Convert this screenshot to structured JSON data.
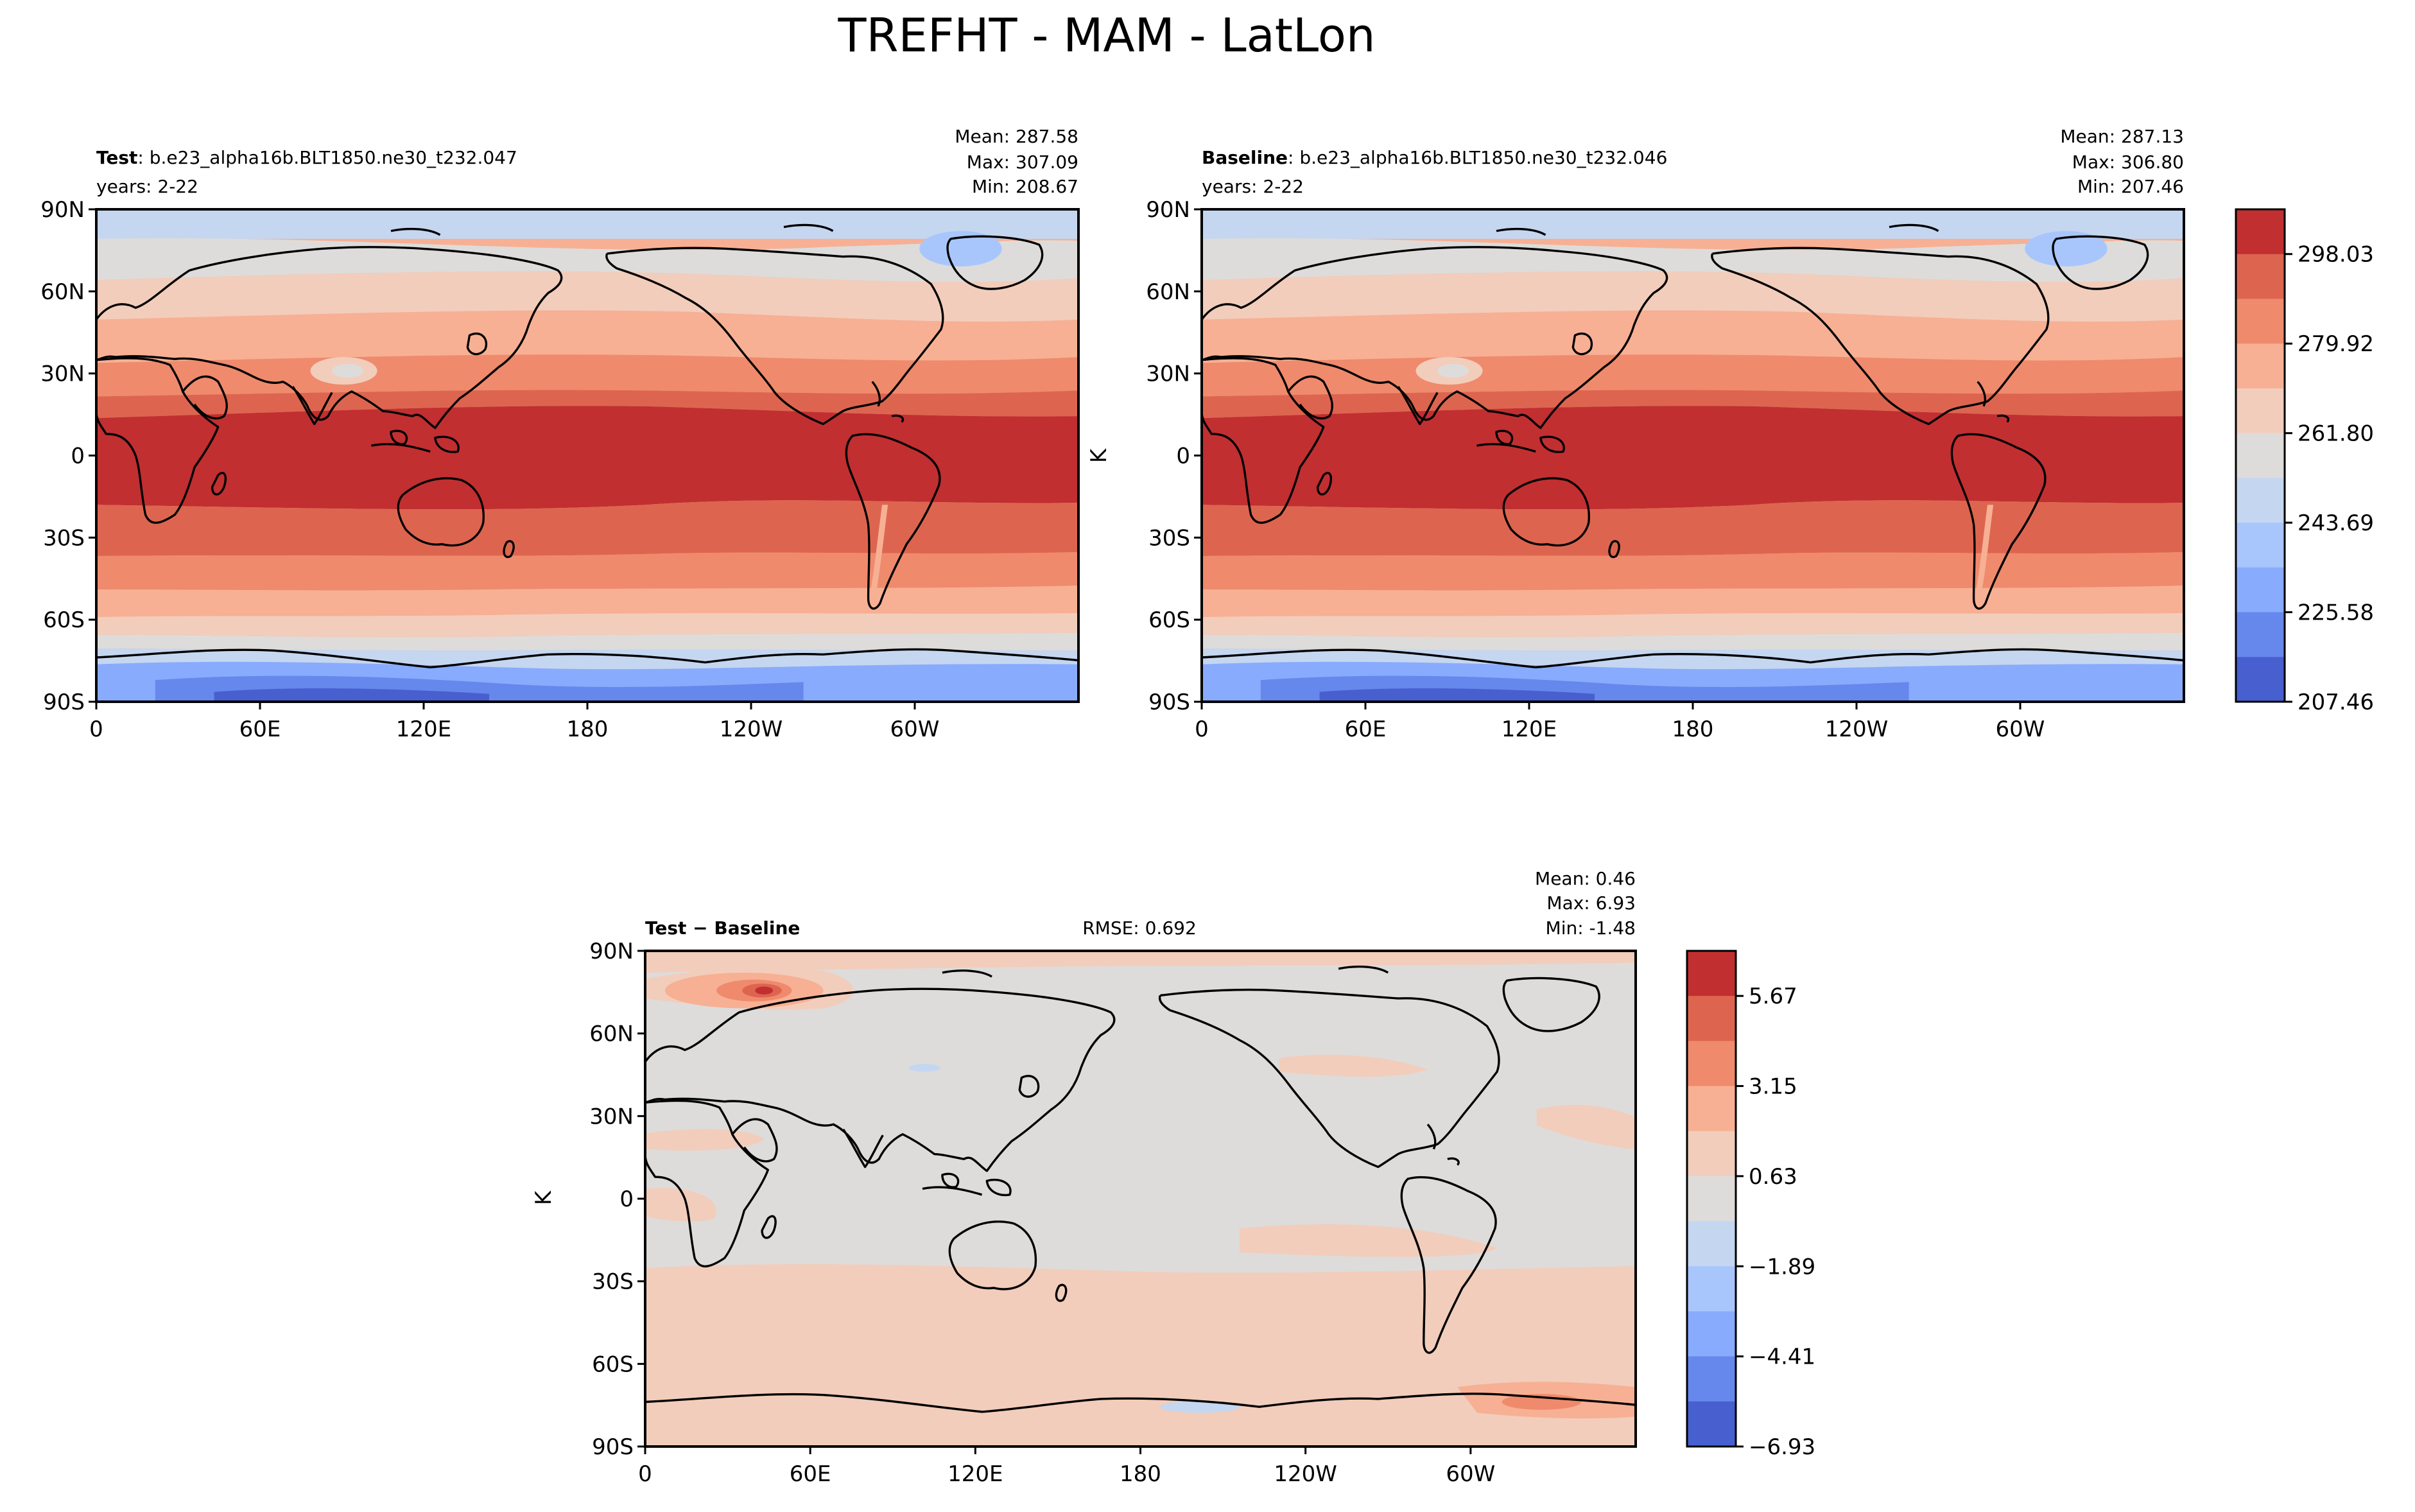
{
  "figure": {
    "title": "TREFHT - MAM - LatLon"
  },
  "lat_ticks": [
    "90N",
    "60N",
    "30N",
    "0",
    "30S",
    "60S",
    "90S"
  ],
  "lon_ticks": [
    "0",
    "60E",
    "120E",
    "180",
    "120W",
    "60W"
  ],
  "chart_data": [
    {
      "type": "heatmap",
      "panel": "test",
      "label_bold": "Test",
      "label_rest": ": b.e23_alpha16b.BLT1850.ne30_t232.047",
      "years": "years: 2-22",
      "stats": {
        "mean": "Mean: 287.58",
        "max": "Max: 307.09",
        "min": "Min: 208.67"
      },
      "x_ticks": [
        "0",
        "60E",
        "120E",
        "180",
        "120W",
        "60W"
      ],
      "y_ticks": [
        "90N",
        "60N",
        "30N",
        "0",
        "30S",
        "60S",
        "90S"
      ],
      "units": "",
      "value_range": [
        208.67,
        307.09
      ]
    },
    {
      "type": "heatmap",
      "panel": "baseline",
      "label_bold": "Baseline",
      "label_rest": ": b.e23_alpha16b.BLT1850.ne30_t232.046",
      "years": "years: 2-22",
      "stats": {
        "mean": "Mean: 287.13",
        "max": "Max: 306.80",
        "min": "Min: 207.46"
      },
      "x_ticks": [
        "0",
        "60E",
        "120E",
        "180",
        "120W",
        "60W"
      ],
      "y_ticks": [
        "90N",
        "60N",
        "30N",
        "0",
        "30S",
        "60S",
        "90S"
      ],
      "units": "K",
      "value_range": [
        207.46,
        306.8
      ],
      "colorbar": {
        "tick_labels": [
          "298.03",
          "279.92",
          "261.80",
          "243.69",
          "225.58",
          "207.46"
        ],
        "colors": [
          "#c12f31",
          "#dd6550",
          "#ef8a6d",
          "#f7b094",
          "#f2cdbb",
          "#dddcdb",
          "#c5d6f0",
          "#a9c6fc",
          "#88abfd",
          "#6687ec",
          "#485fd0"
        ]
      }
    },
    {
      "type": "heatmap",
      "panel": "difference",
      "label_test": "Test",
      "label_sep": " − ",
      "label_base": "Baseline",
      "rmse": "RMSE: 0.692",
      "stats": {
        "mean": "Mean:  0.46",
        "max": "Max:  6.93",
        "min": "Min: -1.48"
      },
      "x_ticks": [
        "0",
        "60E",
        "120E",
        "180",
        "120W",
        "60W"
      ],
      "y_ticks": [
        "90N",
        "60N",
        "30N",
        "0",
        "30S",
        "60S",
        "90S"
      ],
      "units": "K",
      "value_range": [
        -1.48,
        6.93
      ],
      "colorbar": {
        "tick_labels": [
          "5.67",
          "3.15",
          "0.63",
          "−1.89",
          "−4.41",
          "−6.93"
        ],
        "colors": [
          "#c12f31",
          "#dd6550",
          "#ef8a6d",
          "#f7b094",
          "#f2cdbb",
          "#dddcdb",
          "#c5d6f0",
          "#a9c6fc",
          "#88abfd",
          "#6687ec",
          "#485fd0"
        ]
      }
    }
  ]
}
